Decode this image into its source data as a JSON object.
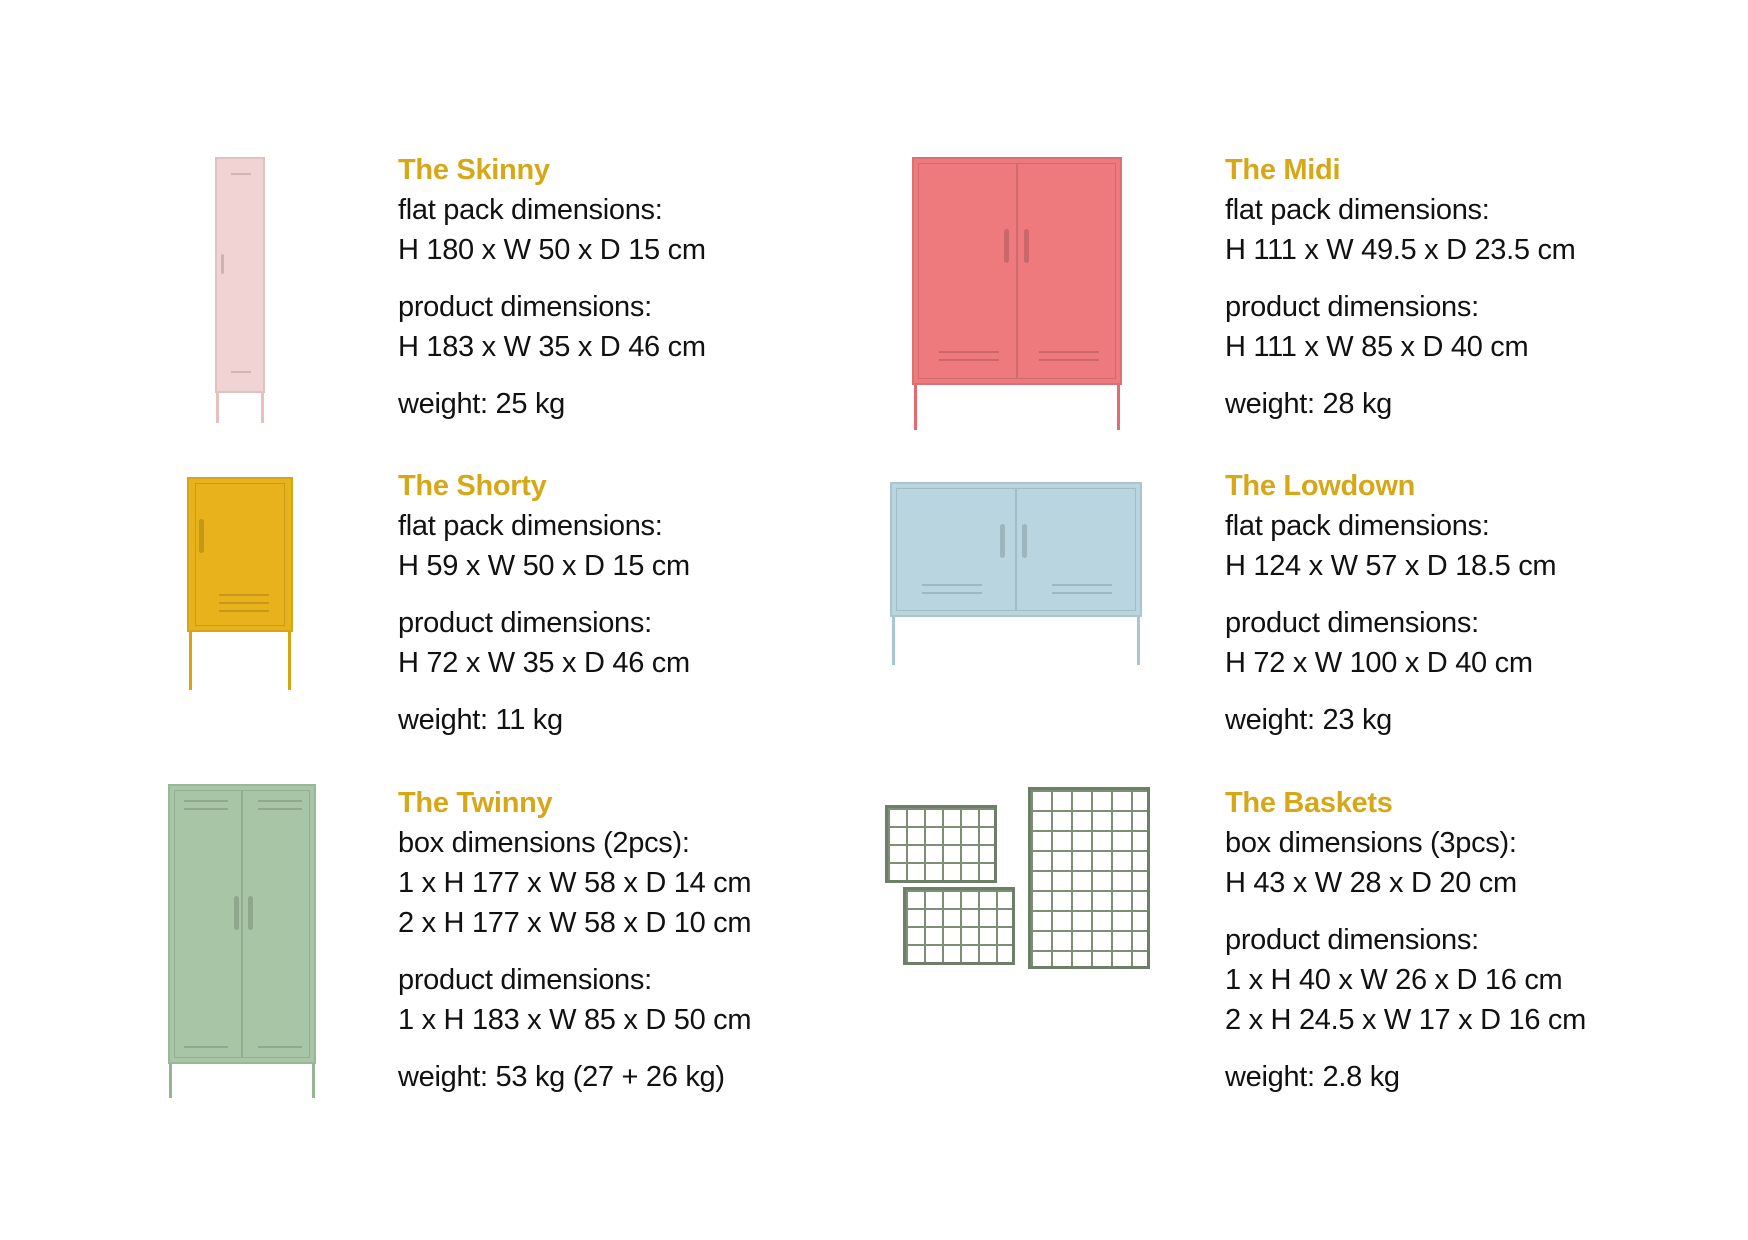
{
  "products": [
    {
      "title": "The Skinny",
      "color": "#f2d3d3",
      "groups": [
        {
          "label": "flat pack dimensions:",
          "lines": [
            "H 180 x W 50 x D 15 cm"
          ]
        },
        {
          "label": "product dimensions:",
          "lines": [
            "H 183 x W 35 x D 46 cm"
          ]
        },
        {
          "label": "weight: 25 kg",
          "lines": []
        }
      ]
    },
    {
      "title": "The Midi",
      "color": "#ee7a7e",
      "groups": [
        {
          "label": "flat pack dimensions:",
          "lines": [
            "H 111 x W 49.5 x D 23.5 cm"
          ]
        },
        {
          "label": "product dimensions:",
          "lines": [
            "H 111 x W 85 x D 40 cm"
          ]
        },
        {
          "label": "weight: 28 kg",
          "lines": []
        }
      ]
    },
    {
      "title": "The Shorty",
      "color": "#e8b21c",
      "groups": [
        {
          "label": "flat pack dimensions:",
          "lines": [
            "H 59 x W 50 x D 15 cm"
          ]
        },
        {
          "label": "product dimensions:",
          "lines": [
            "H 72 x W 35 x D 46 cm"
          ]
        },
        {
          "label": "weight: 11 kg",
          "lines": []
        }
      ]
    },
    {
      "title": "The Lowdown",
      "color": "#b9d6e0",
      "groups": [
        {
          "label": "flat pack dimensions:",
          "lines": [
            "H 124 x W 57 x D 18.5 cm"
          ]
        },
        {
          "label": "product dimensions:",
          "lines": [
            "H 72 x W 100 x D 40 cm"
          ]
        },
        {
          "label": "weight: 23 kg",
          "lines": []
        }
      ]
    },
    {
      "title": "The Twinny",
      "color": "#a8c5a6",
      "groups": [
        {
          "label": "box dimensions (2pcs):",
          "lines": [
            "1 x H 177 x W 58 x D 14 cm",
            "2 x H 177 x W 58 x D 10 cm"
          ]
        },
        {
          "label": "product dimensions:",
          "lines": [
            "1 x H 183 x W 85 x D 50 cm"
          ]
        },
        {
          "label": "weight: 53 kg (27 + 26 kg)",
          "lines": []
        }
      ]
    },
    {
      "title": "The Baskets",
      "color": "#6e7f68",
      "groups": [
        {
          "label": "box dimensions (3pcs):",
          "lines": [
            "H 43 x W 28 x D 20 cm"
          ]
        },
        {
          "label": "product dimensions:",
          "lines": [
            "1 x H 40 x W 26 x D 16 cm",
            "2 x H 24.5 x W 17 x D 16 cm"
          ]
        },
        {
          "label": "weight: 2.8 kg",
          "lines": []
        }
      ]
    }
  ]
}
